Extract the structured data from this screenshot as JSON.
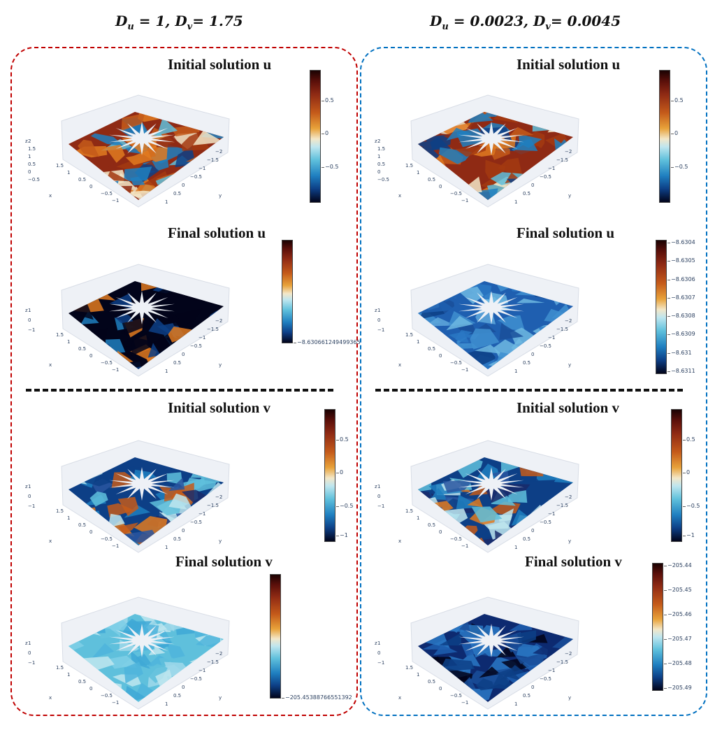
{
  "columns": [
    {
      "title": "D_u = 1, D_v = 1.75",
      "frame_color": "#c00000"
    },
    {
      "title": "D_u = 0.0023, D_v = 0.0045",
      "frame_color": "#0070c0"
    }
  ],
  "panel_titles": {
    "initial_u": "Initial solution u",
    "final_u": "Final solution u",
    "initial_v": "Initial solution v",
    "final_v": "Final solution v"
  },
  "axis_labels": {
    "x": "x",
    "y": "y",
    "z": "z"
  },
  "axis_ticks": {
    "z_init_u": [
      "2",
      "1.5",
      "1",
      "0.5",
      "0",
      "−0.5"
    ],
    "z_other": [
      "1",
      "0",
      "−1"
    ],
    "x": [
      "1.5",
      "1",
      "0.5",
      "0",
      "−0.5",
      "−1"
    ],
    "y": [
      "−2",
      "−1.5",
      "−1",
      "−0.5",
      "0",
      "0.5",
      "1"
    ]
  },
  "colorbars": {
    "left_initial_u": [
      "0.5",
      "0",
      "−0.5"
    ],
    "left_final_u": [
      "−8.630661249499365"
    ],
    "left_initial_v": [
      "0.5",
      "0",
      "−0.5",
      "−1"
    ],
    "left_final_v": [
      "−205.45388766551392"
    ],
    "right_initial_u": [
      "0.5",
      "0",
      "−0.5"
    ],
    "right_final_u": [
      "−8.6304",
      "−8.6305",
      "−8.6306",
      "−8.6307",
      "−8.6308",
      "−8.6309",
      "−8.631",
      "−8.6311"
    ],
    "right_initial_v": [
      "0.5",
      "0",
      "−0.5",
      "−1"
    ],
    "right_final_v": [
      "−205.44",
      "−205.45",
      "−205.46",
      "−205.47",
      "−205.48",
      "−205.49"
    ]
  },
  "colors": {
    "red_frame": "#c00000",
    "blue_frame": "#0070c0",
    "separator": "#111111"
  }
}
